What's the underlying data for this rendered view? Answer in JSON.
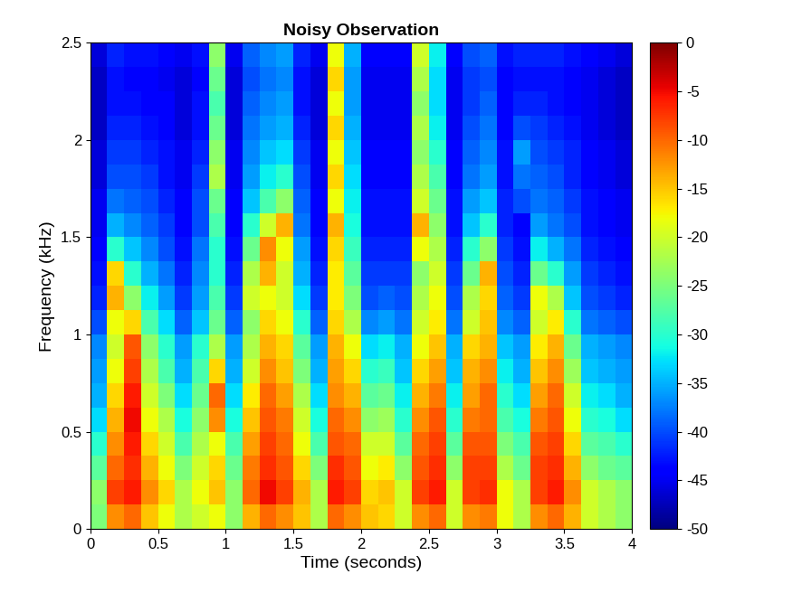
{
  "chart_data": {
    "type": "heatmap",
    "title": "Noisy Observation",
    "x_label": "Time (seconds)",
    "y_label": "Frequency (kHz)",
    "x_edges": [
      0,
      0.125,
      0.25,
      0.375,
      0.5,
      0.625,
      0.75,
      0.875,
      1,
      1.125,
      1.25,
      1.375,
      1.5,
      1.625,
      1.75,
      1.875,
      2,
      2.125,
      2.25,
      2.375,
      2.5,
      2.625,
      2.75,
      2.875,
      3,
      3.125,
      3.25,
      3.375,
      3.5,
      3.625,
      3.75,
      3.875,
      4
    ],
    "y_edges": [
      0,
      0.125,
      0.25,
      0.375,
      0.5,
      0.625,
      0.75,
      0.875,
      1,
      1.125,
      1.25,
      1.375,
      1.5,
      1.625,
      1.75,
      1.875,
      2,
      2.125,
      2.25,
      2.375,
      2.5
    ],
    "cells": [
      [
        -25,
        -12,
        -10,
        -15,
        -18,
        -22,
        -20,
        -18,
        -24,
        -14,
        -10,
        -12,
        -15,
        -22,
        -10,
        -12,
        -15,
        -16,
        -20,
        -12,
        -10,
        -20,
        -12,
        -11,
        -18,
        -22,
        -12,
        -10,
        -14,
        -20,
        -22,
        -24
      ],
      [
        -24,
        -8,
        -6,
        -12,
        -16,
        -22,
        -18,
        -15,
        -24,
        -10,
        -5,
        -8,
        -14,
        -22,
        -6,
        -8,
        -16,
        -15,
        -20,
        -8,
        -6,
        -20,
        -8,
        -7,
        -18,
        -22,
        -8,
        -6,
        -12,
        -20,
        -22,
        -24
      ],
      [
        -27,
        -10,
        -7,
        -14,
        -18,
        -25,
        -20,
        -16,
        -26,
        -11,
        -7,
        -9,
        -16,
        -25,
        -7,
        -9,
        -18,
        -17,
        -24,
        -9,
        -7,
        -24,
        -8,
        -8,
        -22,
        -26,
        -8,
        -7,
        -14,
        -24,
        -26,
        -27
      ],
      [
        -30,
        -12,
        -6,
        -16,
        -20,
        -28,
        -22,
        -18,
        -28,
        -13,
        -8,
        -10,
        -18,
        -28,
        -9,
        -10,
        -20,
        -20,
        -27,
        -10,
        -8,
        -27,
        -9,
        -9,
        -25,
        -28,
        -9,
        -8,
        -16,
        -27,
        -28,
        -30
      ],
      [
        -33,
        -14,
        -5,
        -18,
        -22,
        -31,
        -24,
        -12,
        -31,
        -15,
        -9,
        -11,
        -20,
        -31,
        -10,
        -12,
        -24,
        -23,
        -30,
        -12,
        -9,
        -30,
        -11,
        -10,
        -28,
        -31,
        -11,
        -9,
        -18,
        -30,
        -31,
        -33
      ],
      [
        -35,
        -16,
        -6,
        -20,
        -25,
        -33,
        -26,
        -10,
        -33,
        -17,
        -10,
        -13,
        -22,
        -33,
        -12,
        -14,
        -27,
        -26,
        -32,
        -14,
        -11,
        -32,
        -13,
        -10,
        -30,
        -33,
        -13,
        -10,
        -20,
        -32,
        -33,
        -35
      ],
      [
        -36,
        -18,
        -8,
        -22,
        -28,
        -35,
        -28,
        -16,
        -35,
        -20,
        -12,
        -15,
        -25,
        -35,
        -13,
        -16,
        -30,
        -29,
        -34,
        -16,
        -13,
        -34,
        -14,
        -12,
        -32,
        -35,
        -15,
        -12,
        -23,
        -34,
        -35,
        -36
      ],
      [
        -37,
        -20,
        -9,
        -24,
        -30,
        -36,
        -30,
        -22,
        -36,
        -22,
        -14,
        -16,
        -27,
        -36,
        -14,
        -18,
        -33,
        -32,
        -35,
        -18,
        -15,
        -35,
        -16,
        -14,
        -34,
        -36,
        -17,
        -14,
        -26,
        -35,
        -36,
        -37
      ],
      [
        -40,
        -18,
        -16,
        -28,
        -33,
        -39,
        -34,
        -26,
        -39,
        -24,
        -16,
        -18,
        -30,
        -39,
        -16,
        -22,
        -37,
        -36,
        -38,
        -20,
        -17,
        -38,
        -20,
        -15,
        -37,
        -39,
        -20,
        -17,
        -30,
        -38,
        -39,
        -40
      ],
      [
        -42,
        -14,
        -24,
        -32,
        -36,
        -41,
        -36,
        -28,
        -41,
        -20,
        -18,
        -20,
        -33,
        -41,
        -17,
        -25,
        -40,
        -39,
        -40,
        -22,
        -18,
        -40,
        -22,
        -16,
        -39,
        -41,
        -18,
        -22,
        -34,
        -40,
        -41,
        -42
      ],
      [
        -43,
        -16,
        -30,
        -35,
        -38,
        -42,
        -37,
        -30,
        -42,
        -22,
        -14,
        -20,
        -35,
        -42,
        -17,
        -27,
        -41,
        -41,
        -41,
        -24,
        -20,
        -41,
        -26,
        -14,
        -40,
        -42,
        -26,
        -30,
        -36,
        -41,
        -42,
        -43
      ],
      [
        -44,
        -30,
        -34,
        -37,
        -40,
        -43,
        -38,
        -30,
        -43,
        -26,
        -12,
        -18,
        -36,
        -43,
        -16,
        -29,
        -42,
        -42,
        -42,
        -18,
        -22,
        -42,
        -30,
        -24,
        -41,
        -43,
        -32,
        -35,
        -38,
        -42,
        -43,
        -44
      ],
      [
        -45,
        -35,
        -37,
        -39,
        -41,
        -44,
        -40,
        -28,
        -44,
        -30,
        -20,
        -14,
        -38,
        -44,
        -14,
        -31,
        -43,
        -43,
        -43,
        -14,
        -24,
        -43,
        -34,
        -30,
        -42,
        -44,
        -36,
        -38,
        -40,
        -43,
        -44,
        -45
      ],
      [
        -45,
        -38,
        -39,
        -40,
        -42,
        -44,
        -40,
        -26,
        -44,
        -34,
        -28,
        -24,
        -39,
        -44,
        -18,
        -32,
        -43,
        -43,
        -43,
        -20,
        -26,
        -43,
        -36,
        -34,
        -42,
        -40,
        -38,
        -39,
        -41,
        -43,
        -44,
        -45
      ],
      [
        -46,
        -40,
        -40,
        -41,
        -43,
        -45,
        -41,
        -22,
        -45,
        -36,
        -32,
        -30,
        -40,
        -45,
        -16,
        -33,
        -44,
        -44,
        -44,
        -22,
        -28,
        -44,
        -38,
        -36,
        -43,
        -38,
        -39,
        -40,
        -42,
        -44,
        -45,
        -46
      ],
      [
        -46,
        -41,
        -41,
        -42,
        -43,
        -45,
        -42,
        -24,
        -45,
        -37,
        -34,
        -33,
        -41,
        -45,
        -18,
        -34,
        -44,
        -44,
        -44,
        -24,
        -30,
        -44,
        -39,
        -37,
        -43,
        -36,
        -40,
        -41,
        -42,
        -44,
        -45,
        -46
      ],
      [
        -47,
        -42,
        -42,
        -43,
        -44,
        -46,
        -43,
        -26,
        -46,
        -38,
        -36,
        -35,
        -42,
        -46,
        -16,
        -35,
        -45,
        -45,
        -45,
        -22,
        -32,
        -45,
        -40,
        -38,
        -44,
        -40,
        -41,
        -42,
        -43,
        -45,
        -46,
        -47
      ],
      [
        -47,
        -43,
        -43,
        -44,
        -44,
        -46,
        -43,
        -28,
        -46,
        -39,
        -37,
        -36,
        -43,
        -46,
        -18,
        -36,
        -45,
        -45,
        -45,
        -24,
        -33,
        -45,
        -41,
        -39,
        -44,
        -42,
        -42,
        -43,
        -44,
        -45,
        -46,
        -47
      ],
      [
        -47,
        -43,
        -44,
        -44,
        -45,
        -46,
        -44,
        -26,
        -46,
        -40,
        -38,
        -37,
        -43,
        -46,
        -16,
        -36,
        -45,
        -45,
        -45,
        -22,
        -33,
        -45,
        -41,
        -40,
        -44,
        -43,
        -43,
        -43,
        -44,
        -45,
        -46,
        -47
      ],
      [
        -46,
        -42,
        -43,
        -43,
        -44,
        -45,
        -43,
        -24,
        -45,
        -39,
        -37,
        -36,
        -42,
        -45,
        -18,
        -35,
        -44,
        -44,
        -44,
        -20,
        -32,
        -44,
        -40,
        -39,
        -43,
        -42,
        -42,
        -42,
        -43,
        -44,
        -45,
        -46
      ]
    ],
    "xlim": [
      0,
      4
    ],
    "ylim": [
      0,
      2.5
    ],
    "xticks": [
      0,
      0.5,
      1,
      1.5,
      2,
      2.5,
      3,
      3.5,
      4
    ],
    "yticks": [
      0,
      0.5,
      1,
      1.5,
      2,
      2.5
    ],
    "colorbar_range": [
      -50,
      0
    ],
    "colorbar_ticks": [
      -50,
      -45,
      -40,
      -35,
      -30,
      -25,
      -20,
      -15,
      -10,
      -5,
      0
    ]
  }
}
